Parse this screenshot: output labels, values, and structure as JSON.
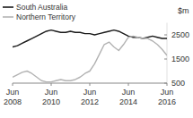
{
  "chart_data": {
    "type": "line",
    "y_label": "$m",
    "categories": [
      "Jun 2008",
      null,
      null,
      null,
      null,
      null,
      null,
      null,
      "Jun 2010",
      null,
      null,
      null,
      null,
      null,
      null,
      null,
      "Jun 2012",
      null,
      null,
      null,
      null,
      null,
      null,
      null,
      "Jun 2014",
      null,
      null,
      null,
      null,
      null,
      null,
      null,
      "Jun 2016"
    ],
    "series": [
      {
        "name": "South Australia",
        "color": "#1a1a1a",
        "values": [
          2000,
          2050,
          2150,
          2250,
          2350,
          2450,
          2550,
          2650,
          2700,
          2650,
          2600,
          2600,
          2650,
          2600,
          2600,
          2550,
          2550,
          2500,
          2550,
          2600,
          2650,
          2700,
          2650,
          2550,
          2450,
          2400,
          2400,
          2350,
          2400,
          2450,
          2400,
          2350,
          2350
        ]
      },
      {
        "name": "Northern Territory",
        "color": "#b3b3b3",
        "values": [
          750,
          850,
          950,
          1000,
          900,
          750,
          600,
          550,
          550,
          600,
          650,
          600,
          600,
          650,
          750,
          900,
          1000,
          1300,
          1700,
          2100,
          2200,
          2000,
          1850,
          2100,
          2400,
          2450,
          2400,
          2350,
          2350,
          2250,
          2100,
          1900,
          1650
        ]
      }
    ],
    "ylim": [
      500,
      3000
    ],
    "yticks": [
      500,
      1500,
      2500
    ],
    "grid": false,
    "legend": "top-left"
  }
}
